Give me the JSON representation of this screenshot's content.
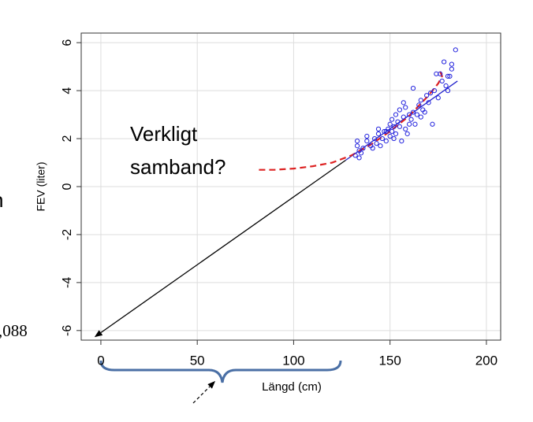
{
  "chart_data": {
    "type": "scatter",
    "x_label": "Längd (cm)",
    "y_label": "FEV (liter)",
    "annotations": [
      "Verkligt",
      "samband?",
      ",088",
      "n"
    ],
    "xlim": [
      -10.2,
      207.4
    ],
    "ylim": [
      -6.4,
      6.4
    ],
    "xticks": [
      0,
      50,
      100,
      150,
      200
    ],
    "yticks": [
      -6,
      -4,
      -2,
      0,
      2,
      4,
      6
    ],
    "grid": true,
    "series": [
      {
        "color": "#2222dd",
        "x": [
          132,
          133,
          133,
          134,
          134,
          135,
          136,
          138,
          138,
          140,
          141,
          142,
          143,
          144,
          145,
          146,
          147,
          148,
          149,
          150,
          150,
          151,
          151,
          152,
          152,
          153,
          153,
          154,
          155,
          155,
          156,
          157,
          157,
          158,
          158,
          159,
          160,
          160,
          161,
          162,
          162,
          163,
          164,
          165,
          166,
          166,
          167,
          168,
          169,
          170,
          171,
          172,
          173,
          174,
          175,
          176,
          177,
          178,
          179,
          180,
          180,
          182,
          182,
          184,
          181,
          144,
          148
        ],
        "values": [
          1.3,
          1.9,
          1.7,
          1.5,
          1.2,
          1.4,
          1.6,
          1.9,
          2.1,
          1.7,
          1.6,
          2.0,
          1.8,
          2.2,
          1.7,
          2.0,
          2.3,
          1.9,
          2.4,
          2.6,
          2.1,
          2.8,
          2.3,
          2.5,
          2.0,
          3.0,
          2.2,
          2.7,
          3.2,
          2.5,
          1.9,
          2.9,
          3.5,
          3.3,
          2.4,
          2.2,
          3.0,
          2.6,
          2.8,
          3.1,
          4.1,
          2.6,
          3.0,
          3.4,
          3.6,
          2.9,
          3.2,
          3.1,
          3.8,
          3.5,
          3.9,
          2.6,
          4.0,
          4.7,
          3.7,
          4.7,
          4.4,
          5.2,
          4.2,
          4.0,
          4.6,
          4.9,
          5.1,
          5.7,
          4.6,
          2.4,
          2.3
        ]
      }
    ],
    "lines": [
      {
        "color": "#000000",
        "style": "solid",
        "x": [
          0,
          127
        ],
        "y": [
          -6.088,
          1.1
        ]
      },
      {
        "color": "#2222cc",
        "style": "solid",
        "x": [
          127,
          185
        ],
        "y": [
          1.1,
          4.4
        ]
      },
      {
        "color": "#dd2222",
        "style": "dashed",
        "x": [
          82,
          90,
          100,
          110,
          120,
          130,
          140,
          150,
          160,
          170,
          175,
          177,
          176
        ],
        "y": [
          0.7,
          0.7,
          0.75,
          0.85,
          1.0,
          1.3,
          1.75,
          2.3,
          2.95,
          3.8,
          4.3,
          4.6,
          4.8
        ]
      }
    ]
  }
}
